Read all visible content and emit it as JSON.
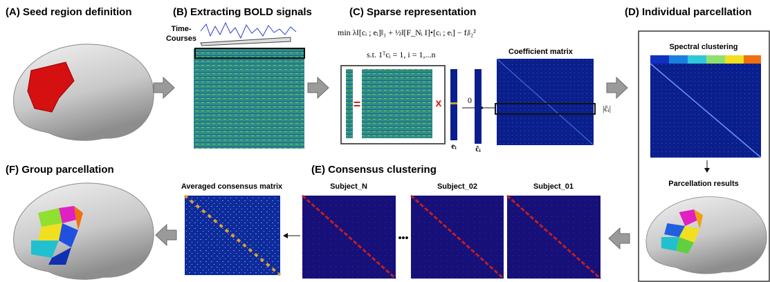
{
  "panels": {
    "A": {
      "title": "(A) Seed region definition"
    },
    "B": {
      "title": "(B) Extracting BOLD signals",
      "time_courses_label": [
        "Time-",
        "Courses"
      ]
    },
    "C": {
      "title": "(C) Sparse representation",
      "objective": "min  λ‖[cᵢ ; eᵢ]‖₁ + ½‖[F_Nᵢ  I]•[cᵢ ; eᵢ] − fᵢ‖₂²",
      "constraint": "s.t.  1ᵀcᵢ = 1,   i = 1,...n",
      "equals": "=",
      "times": "x",
      "zero": "0",
      "e_label": "eᵢ",
      "c_hat_label": "ĉᵢ",
      "coefficient_matrix": "Coefficient matrix",
      "abs_c_hat": "|ĉᵢ|"
    },
    "D": {
      "title": "(D) Individual parcellation",
      "spectral_clustering": "Spectral clustering",
      "parcellation_results": "Parcellation results"
    },
    "E": {
      "title": "(E) Consensus clustering",
      "subjects": [
        "Subject_N",
        "Subject_02",
        "Subject_01"
      ],
      "ellipsis": "•••"
    },
    "F": {
      "title": "(F) Group parcellation",
      "averaged_consensus_matrix": "Averaged  consensus matrix"
    }
  }
}
